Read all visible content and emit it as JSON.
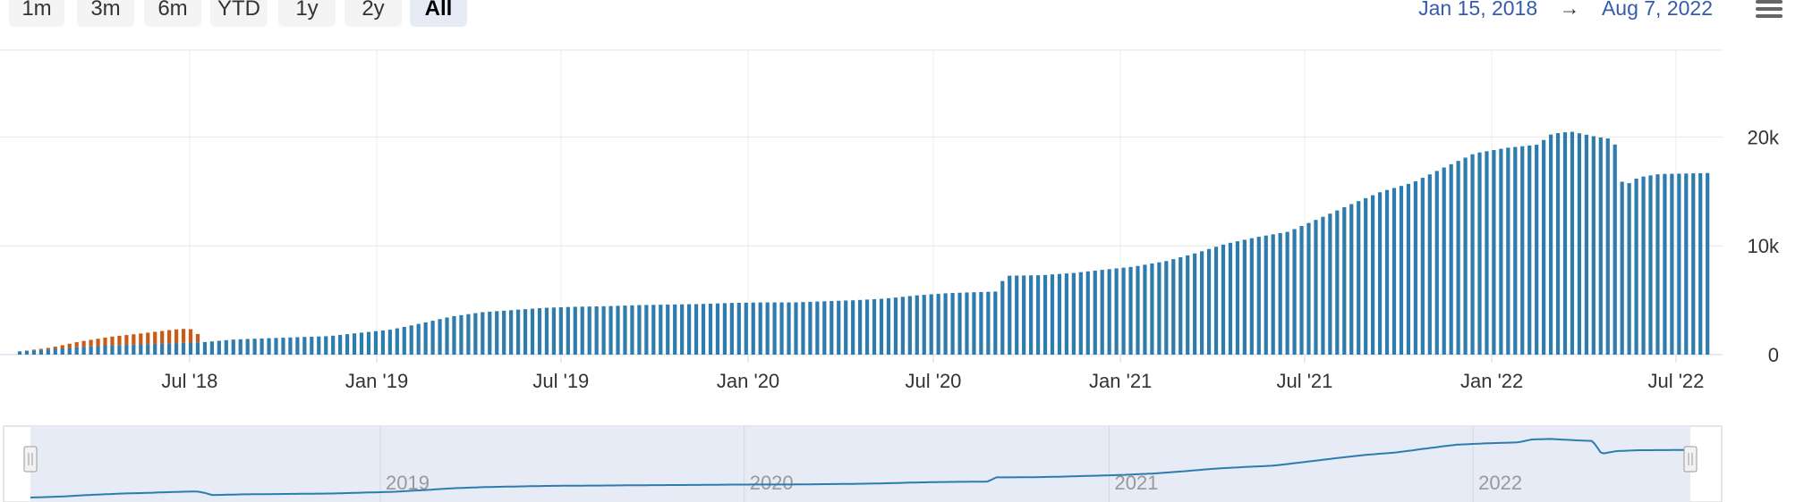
{
  "range_selector": {
    "buttons": [
      "1m",
      "3m",
      "6m",
      "YTD",
      "1y",
      "2y",
      "All"
    ],
    "active": "All"
  },
  "date_range": {
    "from": "Jan 15, 2018",
    "arrow": "→",
    "to": "Aug 7, 2022"
  },
  "menu": {
    "icon": "hamburger-menu-icon"
  },
  "chart_data": {
    "type": "bar",
    "stacked": true,
    "x_start": "2018-01-15",
    "x_end": "2022-08-07",
    "ylim": [
      0,
      28000
    ],
    "yticks": [
      0,
      10000,
      20000
    ],
    "ytick_labels": [
      "0",
      "10k",
      "20k"
    ],
    "xticks": [
      "2018-07-01",
      "2019-01-01",
      "2019-07-01",
      "2020-01-01",
      "2020-07-01",
      "2021-01-01",
      "2021-07-01",
      "2022-01-01",
      "2022-07-01"
    ],
    "xtick_labels": [
      "Jul '18",
      "Jan '19",
      "Jul '19",
      "Jan '20",
      "Jul '20",
      "Jan '21",
      "Jul '21",
      "Jan '22",
      "Jul '22"
    ],
    "grid": true,
    "legend": false,
    "series": [
      {
        "color": "#2e7bad",
        "points": [
          [
            "2018-01-15",
            300
          ],
          [
            "2018-02-15",
            500
          ],
          [
            "2018-03-15",
            700
          ],
          [
            "2018-04-15",
            850
          ],
          [
            "2018-05-15",
            950
          ],
          [
            "2018-06-15",
            1050
          ],
          [
            "2018-07-01",
            1100
          ],
          [
            "2018-07-15",
            1150
          ],
          [
            "2018-08-15",
            1400
          ],
          [
            "2018-09-15",
            1500
          ],
          [
            "2018-10-15",
            1600
          ],
          [
            "2018-11-15",
            1700
          ],
          [
            "2018-12-15",
            2000
          ],
          [
            "2019-01-15",
            2300
          ],
          [
            "2019-02-15",
            2900
          ],
          [
            "2019-03-15",
            3500
          ],
          [
            "2019-04-15",
            3900
          ],
          [
            "2019-05-15",
            4100
          ],
          [
            "2019-06-15",
            4300
          ],
          [
            "2019-07-15",
            4400
          ],
          [
            "2019-08-15",
            4450
          ],
          [
            "2019-09-15",
            4550
          ],
          [
            "2019-10-15",
            4600
          ],
          [
            "2019-11-15",
            4650
          ],
          [
            "2019-12-15",
            4750
          ],
          [
            "2020-01-15",
            4800
          ],
          [
            "2020-02-15",
            4800
          ],
          [
            "2020-03-15",
            4900
          ],
          [
            "2020-04-15",
            5000
          ],
          [
            "2020-05-15",
            5150
          ],
          [
            "2020-06-15",
            5450
          ],
          [
            "2020-07-15",
            5650
          ],
          [
            "2020-08-15",
            5750
          ],
          [
            "2020-09-01",
            5800
          ],
          [
            "2020-09-10",
            7250
          ],
          [
            "2020-10-15",
            7300
          ],
          [
            "2020-11-15",
            7500
          ],
          [
            "2020-12-15",
            7800
          ],
          [
            "2021-01-15",
            8100
          ],
          [
            "2021-02-15",
            8600
          ],
          [
            "2021-03-15",
            9300
          ],
          [
            "2021-04-15",
            10200
          ],
          [
            "2021-05-15",
            10800
          ],
          [
            "2021-06-15",
            11300
          ],
          [
            "2021-07-15",
            12500
          ],
          [
            "2021-08-15",
            13800
          ],
          [
            "2021-09-15",
            15000
          ],
          [
            "2021-10-15",
            15800
          ],
          [
            "2021-11-15",
            17200
          ],
          [
            "2021-12-15",
            18500
          ],
          [
            "2022-01-15",
            19000
          ],
          [
            "2022-02-15",
            19300
          ],
          [
            "2022-03-01",
            20300
          ],
          [
            "2022-03-20",
            20500
          ],
          [
            "2022-04-15",
            20000
          ],
          [
            "2022-05-01",
            19800
          ],
          [
            "2022-05-10",
            15400
          ],
          [
            "2022-05-25",
            16300
          ],
          [
            "2022-06-15",
            16600
          ],
          [
            "2022-08-07",
            16700
          ]
        ]
      },
      {
        "color": "#cc5a14",
        "points": [
          [
            "2018-01-15",
            0
          ],
          [
            "2018-02-15",
            150
          ],
          [
            "2018-03-15",
            500
          ],
          [
            "2018-04-15",
            800
          ],
          [
            "2018-05-15",
            1000
          ],
          [
            "2018-06-15",
            1250
          ],
          [
            "2018-07-01",
            1300
          ],
          [
            "2018-07-10",
            700
          ],
          [
            "2018-07-16",
            0
          ],
          [
            "2022-08-07",
            0
          ]
        ]
      }
    ],
    "navigator": {
      "labels": [
        "2019",
        "2020",
        "2021",
        "2022"
      ],
      "selected_from": "2018-01-15",
      "selected_to": "2022-08-07"
    }
  }
}
